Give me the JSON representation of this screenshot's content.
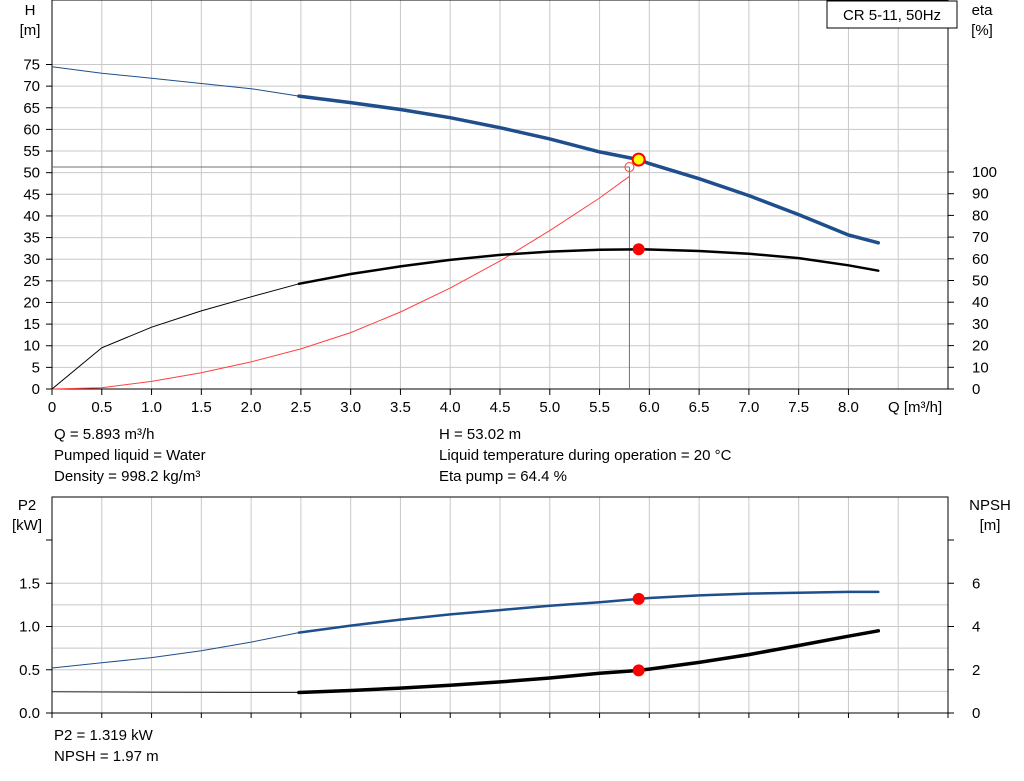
{
  "pump_title": "CR 5-11, 50Hz",
  "info_top_left": [
    "Q = 5.893 m³/h",
    "Pumped liquid = Water",
    "Density = 998.2 kg/m³"
  ],
  "info_top_right": [
    "H = 53.02 m",
    "Liquid temperature during operation = 20 °C",
    "Eta pump = 64.4 %"
  ],
  "info_bottom": [
    "P2 = 1.319 kW",
    "NPSH = 1.97 m"
  ],
  "colors": {
    "head": "#1f4e8c",
    "eta": "#ff4040",
    "marker": "#ff0000",
    "op_marker": "#ffff00",
    "grid": "#c8c8c8"
  },
  "chart_data": [
    {
      "type": "line",
      "title": "",
      "xlabel": "Q [m³/h]",
      "ylabel": "H [m]",
      "ylabel_right": "eta [%]",
      "x_ticks": [
        "0",
        "0.5",
        "1.0",
        "1.5",
        "2.0",
        "2.5",
        "3.0",
        "3.5",
        "4.0",
        "4.5",
        "5.0",
        "5.5",
        "6.0",
        "6.5",
        "7.0",
        "7.5",
        "8.0"
      ],
      "y_ticks": [
        "0",
        "5",
        "10",
        "15",
        "20",
        "25",
        "30",
        "35",
        "40",
        "45",
        "50",
        "55",
        "60",
        "65",
        "70",
        "75"
      ],
      "y_right_ticks": [
        "0",
        "10",
        "20",
        "30",
        "40",
        "50",
        "60",
        "70",
        "80",
        "90",
        "100"
      ],
      "xlim": [
        0,
        9
      ],
      "ylim": [
        0,
        75
      ],
      "y_right_lim": [
        0,
        100
      ],
      "grid": true,
      "series": [
        {
          "axis": "left",
          "points": [
            [
              0,
              74.5
            ],
            [
              0.5,
              73.0
            ],
            [
              1.0,
              71.8
            ],
            [
              1.5,
              70.6
            ],
            [
              2.0,
              69.4
            ],
            [
              2.48,
              67.7
            ],
            [
              3.0,
              66.2
            ],
            [
              3.5,
              64.6
            ],
            [
              4.0,
              62.7
            ],
            [
              4.5,
              60.4
            ],
            [
              5.0,
              57.8
            ],
            [
              5.5,
              54.8
            ],
            [
              5.893,
              53.02
            ],
            [
              6.0,
              52.1
            ],
            [
              6.5,
              48.6
            ],
            [
              7.0,
              44.7
            ],
            [
              7.5,
              40.3
            ],
            [
              8.0,
              35.6
            ],
            [
              8.3,
              33.8
            ]
          ]
        },
        {
          "axis": "right",
          "points": [
            [
              0,
              0
            ],
            [
              0.5,
              19.0
            ],
            [
              1.0,
              28.5
            ],
            [
              1.5,
              36.0
            ],
            [
              2.0,
              42.5
            ],
            [
              2.48,
              48.5
            ],
            [
              3.0,
              53.0
            ],
            [
              3.5,
              56.5
            ],
            [
              4.0,
              59.5
            ],
            [
              4.5,
              61.8
            ],
            [
              5.0,
              63.3
            ],
            [
              5.5,
              64.2
            ],
            [
              5.893,
              64.4
            ],
            [
              6.0,
              64.3
            ],
            [
              6.5,
              63.6
            ],
            [
              7.0,
              62.3
            ],
            [
              7.5,
              60.3
            ],
            [
              8.0,
              57.0
            ],
            [
              8.3,
              54.5
            ]
          ]
        },
        {
          "axis": "right",
          "points": [
            [
              0,
              0
            ],
            [
              0.5,
              0.6
            ],
            [
              1.0,
              3.5
            ],
            [
              1.5,
              7.5
            ],
            [
              2.0,
              12.5
            ],
            [
              2.5,
              18.5
            ],
            [
              3.0,
              26.0
            ],
            [
              3.5,
              35.5
            ],
            [
              4.0,
              46.5
            ],
            [
              4.5,
              59.0
            ],
            [
              5.0,
              73.0
            ],
            [
              5.5,
              88.0
            ],
            [
              5.8,
              98.0
            ]
          ]
        }
      ],
      "operating_point": {
        "Q": 5.893,
        "H": 53.02,
        "eta": 64.4
      },
      "duty_point": {
        "Q": 5.8,
        "H": 51.3
      }
    },
    {
      "type": "line",
      "title": "",
      "xlabel": "",
      "ylabel": "P2 [kW]",
      "ylabel_right": "NPSH [m]",
      "y_ticks": [
        "0.0",
        "0.5",
        "1.0",
        "1.5"
      ],
      "y_right_ticks": [
        "0",
        "2",
        "4",
        "6"
      ],
      "xlim": [
        0,
        9
      ],
      "ylim": [
        0,
        2
      ],
      "y_right_lim": [
        0,
        8
      ],
      "grid": true,
      "series": [
        {
          "axis": "left",
          "points": [
            [
              0,
              0.52
            ],
            [
              0.5,
              0.58
            ],
            [
              1.0,
              0.64
            ],
            [
              1.5,
              0.72
            ],
            [
              2.0,
              0.82
            ],
            [
              2.48,
              0.93
            ],
            [
              3.0,
              1.01
            ],
            [
              3.5,
              1.08
            ],
            [
              4.0,
              1.14
            ],
            [
              4.5,
              1.19
            ],
            [
              5.0,
              1.24
            ],
            [
              5.5,
              1.28
            ],
            [
              5.893,
              1.319
            ],
            [
              6.0,
              1.33
            ],
            [
              6.5,
              1.36
            ],
            [
              7.0,
              1.38
            ],
            [
              7.5,
              1.39
            ],
            [
              8.0,
              1.4
            ],
            [
              8.3,
              1.4
            ]
          ]
        },
        {
          "axis": "right",
          "points": [
            [
              0,
              0.98
            ],
            [
              1.0,
              0.96
            ],
            [
              2.0,
              0.95
            ],
            [
              2.48,
              0.95
            ],
            [
              3.0,
              1.04
            ],
            [
              3.5,
              1.15
            ],
            [
              4.0,
              1.28
            ],
            [
              4.5,
              1.44
            ],
            [
              5.0,
              1.62
            ],
            [
              5.5,
              1.84
            ],
            [
              5.893,
              1.97
            ],
            [
              6.0,
              2.03
            ],
            [
              6.5,
              2.34
            ],
            [
              7.0,
              2.7
            ],
            [
              7.5,
              3.12
            ],
            [
              8.0,
              3.55
            ],
            [
              8.3,
              3.8
            ]
          ]
        }
      ],
      "operating_point": {
        "Q": 5.893,
        "P2": 1.319,
        "NPSH": 1.97
      }
    }
  ]
}
